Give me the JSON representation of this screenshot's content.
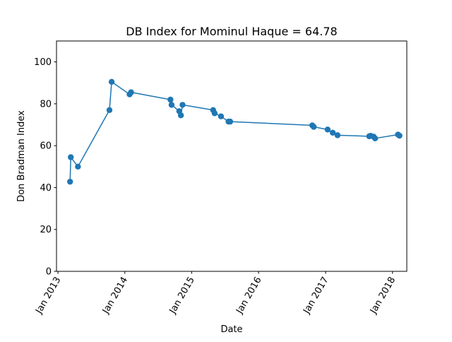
{
  "chart_data": {
    "type": "line",
    "title": "DB Index for Mominul Haque = 64.78",
    "xlabel": "Date",
    "ylabel": "Don Bradman Index",
    "xlim": [
      "2012-12-24",
      "2018-03-20"
    ],
    "ylim": [
      0,
      110
    ],
    "x_ticks": [
      {
        "date": "2013-01-01",
        "label": "Jan 2013"
      },
      {
        "date": "2014-01-01",
        "label": "Jan 2014"
      },
      {
        "date": "2015-01-01",
        "label": "Jan 2015"
      },
      {
        "date": "2016-01-01",
        "label": "Jan 2016"
      },
      {
        "date": "2017-01-01",
        "label": "Jan 2017"
      },
      {
        "date": "2018-01-01",
        "label": "Jan 2018"
      }
    ],
    "y_ticks": [
      0,
      20,
      40,
      60,
      80,
      100
    ],
    "grid": false,
    "legend": "none",
    "series": [
      {
        "color": "#1f77b4",
        "marker": "circle",
        "points": [
          {
            "x": "2013-03-08",
            "y": 42.8
          },
          {
            "x": "2013-03-12",
            "y": 54.5
          },
          {
            "x": "2013-04-20",
            "y": 50.0
          },
          {
            "x": "2013-10-09",
            "y": 77.0
          },
          {
            "x": "2013-10-21",
            "y": 90.5
          },
          {
            "x": "2014-01-27",
            "y": 84.5
          },
          {
            "x": "2014-02-04",
            "y": 85.5
          },
          {
            "x": "2014-09-07",
            "y": 82.0
          },
          {
            "x": "2014-09-13",
            "y": 79.5
          },
          {
            "x": "2014-10-25",
            "y": 76.5
          },
          {
            "x": "2014-11-03",
            "y": 74.5
          },
          {
            "x": "2014-11-12",
            "y": 79.5
          },
          {
            "x": "2015-04-28",
            "y": 77.0
          },
          {
            "x": "2015-05-06",
            "y": 75.5
          },
          {
            "x": "2015-06-10",
            "y": 74.0
          },
          {
            "x": "2015-07-21",
            "y": 71.5
          },
          {
            "x": "2015-07-30",
            "y": 71.5
          },
          {
            "x": "2016-10-20",
            "y": 69.7
          },
          {
            "x": "2016-10-28",
            "y": 69.0
          },
          {
            "x": "2017-01-12",
            "y": 67.7
          },
          {
            "x": "2017-02-09",
            "y": 66.2
          },
          {
            "x": "2017-03-07",
            "y": 65.0
          },
          {
            "x": "2017-08-27",
            "y": 64.5
          },
          {
            "x": "2017-09-04",
            "y": 64.7
          },
          {
            "x": "2017-09-20",
            "y": 64.3
          },
          {
            "x": "2017-09-28",
            "y": 63.5
          },
          {
            "x": "2018-01-31",
            "y": 65.3
          },
          {
            "x": "2018-02-08",
            "y": 64.78
          }
        ]
      }
    ]
  }
}
